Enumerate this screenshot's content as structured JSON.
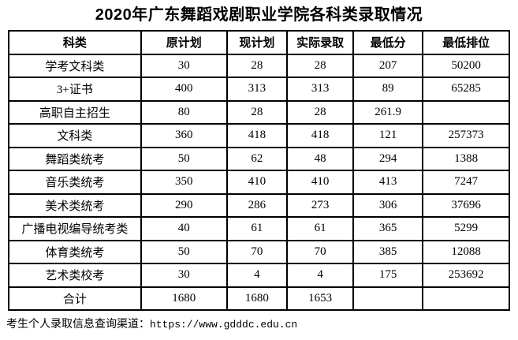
{
  "title": "2020年广东舞蹈戏剧职业学院各科类录取情况",
  "table": {
    "headers": [
      "科类",
      "原计划",
      "现计划",
      "实际录取",
      "最低分",
      "最低排位"
    ],
    "rows": [
      [
        "学考文科类",
        "30",
        "28",
        "28",
        "207",
        "50200"
      ],
      [
        "3+证书",
        "400",
        "313",
        "313",
        "89",
        "65285"
      ],
      [
        "高职自主招生",
        "80",
        "28",
        "28",
        "261.9",
        ""
      ],
      [
        "文科类",
        "360",
        "418",
        "418",
        "121",
        "257373"
      ],
      [
        "舞蹈类统考",
        "50",
        "62",
        "48",
        "294",
        "1388"
      ],
      [
        "音乐类统考",
        "350",
        "410",
        "410",
        "413",
        "7247"
      ],
      [
        "美术类统考",
        "290",
        "286",
        "273",
        "306",
        "37696"
      ],
      [
        "广播电视编导统考类",
        "40",
        "61",
        "61",
        "365",
        "5299"
      ],
      [
        "体育类统考",
        "50",
        "70",
        "70",
        "385",
        "12088"
      ],
      [
        "艺术类校考",
        "30",
        "4",
        "4",
        "175",
        "253692"
      ],
      [
        "合计",
        "1680",
        "1680",
        "1653",
        "",
        ""
      ]
    ]
  },
  "footer": {
    "label": "考生个人录取信息查询渠道：",
    "url": "https://www.gdddc.edu.cn"
  },
  "colors": {
    "text": "#000000",
    "border": "#000000",
    "background": "#ffffff"
  }
}
